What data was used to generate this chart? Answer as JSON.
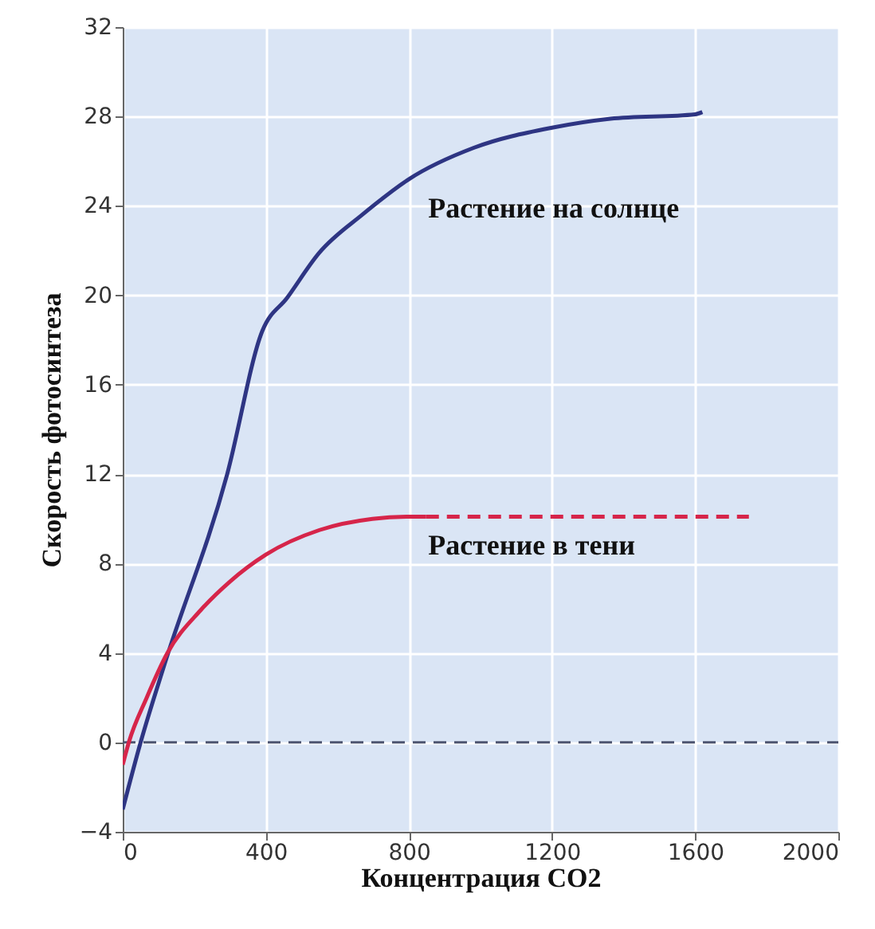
{
  "chart_data": {
    "type": "line",
    "xlabel": "Концентрация CO2",
    "ylabel": "Скорость фотосинтеза",
    "xlim": [
      0,
      2000
    ],
    "xticks": [
      0,
      400,
      800,
      1200,
      1600,
      2000
    ],
    "ylim": [
      -4,
      32
    ],
    "yticks": [
      -4,
      0,
      4,
      8,
      12,
      16,
      20,
      24,
      28,
      32
    ],
    "grid": true,
    "series": [
      {
        "name": "Растение на солнце",
        "color": "#2e3583",
        "x": [
          0,
          50,
          117,
          292,
          390,
          460,
          549,
          669,
          800,
          981,
          1200,
          1363,
          1600,
          1620
        ],
        "values": [
          -3,
          0,
          3.5,
          12,
          18.4,
          19.9,
          21.9,
          23.6,
          25.2,
          26.6,
          27.5,
          27.9,
          28.1,
          28.2
        ]
      },
      {
        "name": "Растение в тени",
        "color": "#d6254a",
        "x": [
          0,
          17,
          67,
          125,
          217,
          300,
          400,
          550,
          698,
          800,
          848
        ],
        "values": [
          -1,
          0,
          2,
          4,
          5.9,
          7.2,
          8.4,
          9.5,
          10,
          10.1,
          10.1
        ]
      },
      {
        "color": "#d6254a",
        "line_style": "dashed",
        "x": [
          848,
          1750
        ],
        "values": [
          10.1,
          10.1
        ]
      }
    ],
    "ref_lines": [
      {
        "axis": "y",
        "value": 0,
        "color": "#4d5570",
        "line_style": "dashed"
      }
    ]
  }
}
